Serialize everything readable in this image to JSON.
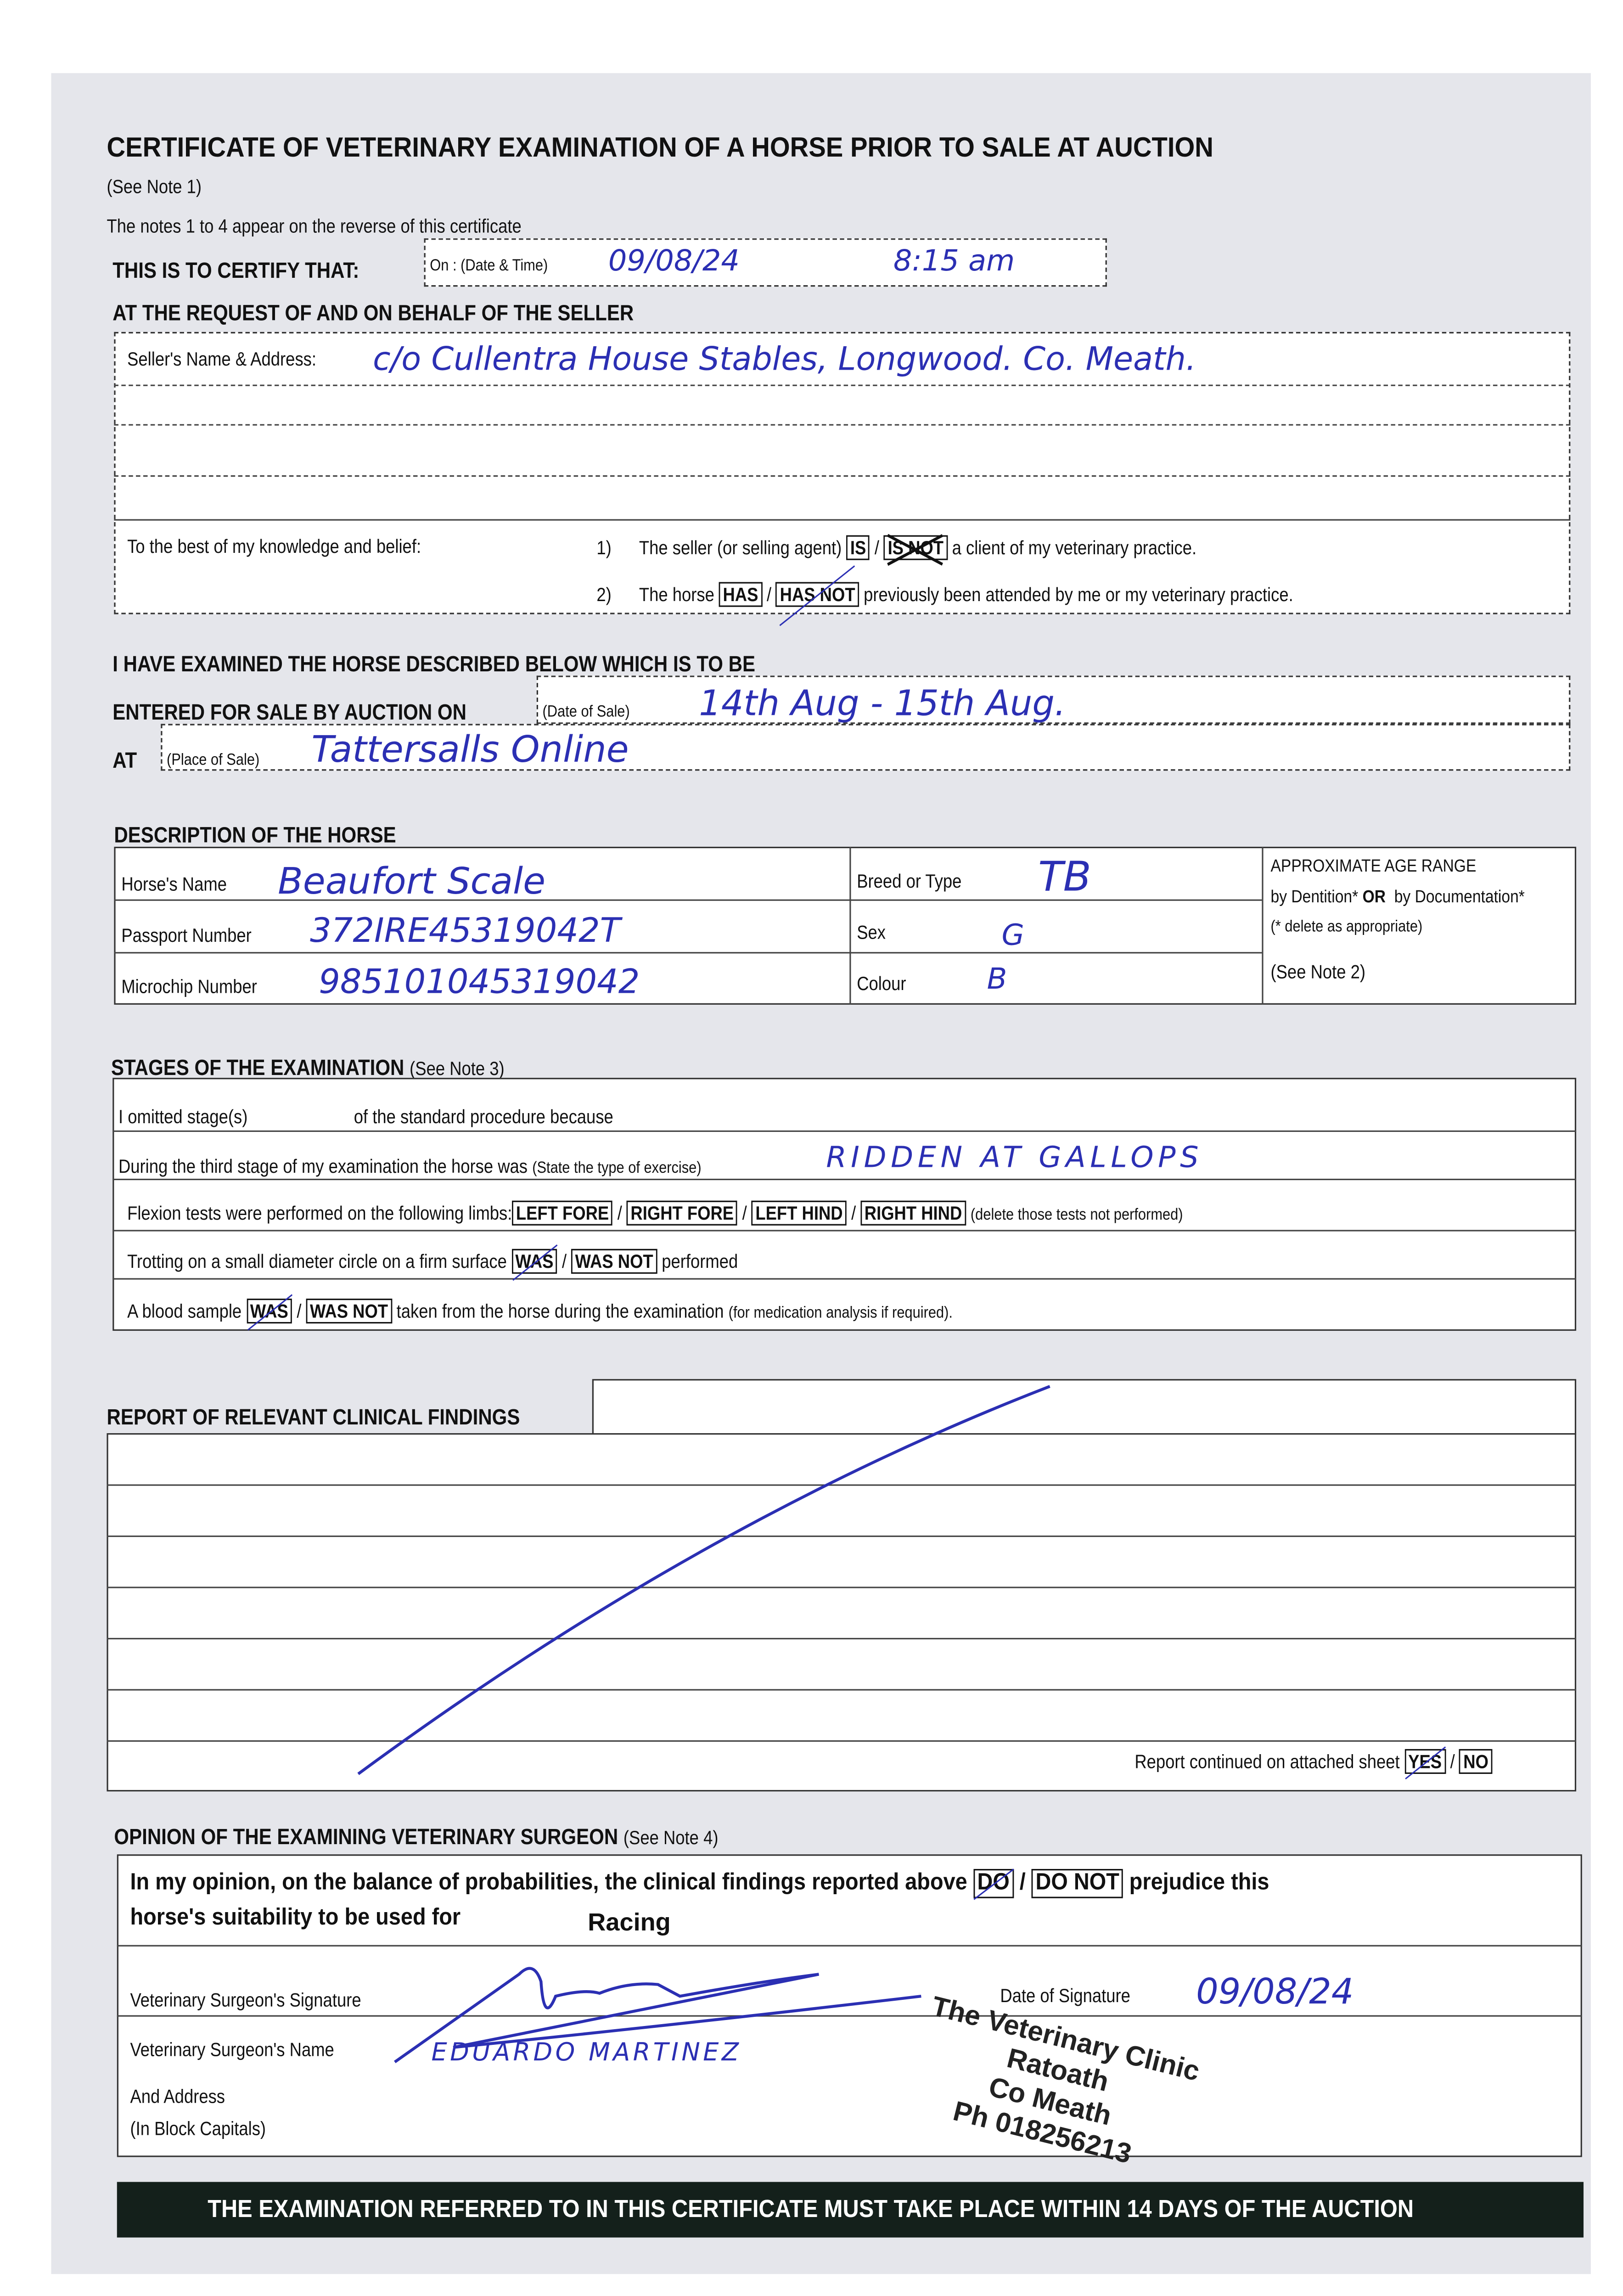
{
  "title": "CERTIFICATE OF VETERINARY EXAMINATION OF A HORSE PRIOR TO SALE AT AUCTION",
  "see_note_1": "(See Note 1)",
  "notes_line": "The notes 1 to 4 appear on the reverse of this certificate",
  "certify": {
    "label": "THIS IS TO CERTIFY THAT:",
    "date_label": "On : (Date & Time)",
    "date_value": "09/08/24",
    "time_value": "8:15 am"
  },
  "seller": {
    "heading": "AT THE REQUEST OF AND ON BEHALF OF THE SELLER",
    "name_label": "Seller's Name & Address:",
    "name_value": "c/o Cullentra House Stables, Longwood. Co. Meath.",
    "knowledge_label": "To the best of my knowledge and belief:",
    "s1_num": "1)",
    "s1_pre": "The seller (or selling agent)",
    "s1_opt1": "IS",
    "s1_opt2": "IS NOT",
    "s1_post": "a client of my veterinary practice.",
    "s2_num": "2)",
    "s2_pre": "The horse",
    "s2_opt1": "HAS",
    "s2_opt2": "HAS NOT",
    "s2_post": "previously been attended by me or my veterinary practice."
  },
  "sale": {
    "heading": "I HAVE EXAMINED THE HORSE DESCRIBED BELOW WHICH IS TO BE",
    "entered_label": "ENTERED FOR SALE BY AUCTION ON",
    "date_label": "(Date of Sale)",
    "date_value": "14th Aug - 15th Aug.",
    "at_label": "AT",
    "place_label": "(Place of Sale)",
    "place_value": "Tattersalls Online"
  },
  "description": {
    "heading": "DESCRIPTION OF THE HORSE",
    "name_label": "Horse's Name",
    "name_value": "Beaufort Scale",
    "passport_label": "Passport Number",
    "passport_value": "372IRE45319042T",
    "microchip_label": "Microchip Number",
    "microchip_value": "985101045319042",
    "breed_label": "Breed or Type",
    "breed_value": "TB",
    "sex_label": "Sex",
    "sex_value": "G",
    "colour_label": "Colour",
    "colour_value": "B",
    "age_title": "APPROXIMATE AGE RANGE",
    "age_by1": "by Dentition*",
    "age_or": "OR",
    "age_by2": "by Documentation*",
    "age_delete": "(* delete as appropriate)",
    "age_note": "(See Note 2)"
  },
  "stages": {
    "heading": "STAGES OF THE EXAMINATION",
    "heading_note": "(See Note 3)",
    "omitted_a": "I omitted stage(s)",
    "omitted_b": "of the standard procedure because",
    "third_label": "During the third stage of my examination the horse was",
    "third_note": "(State the type of exercise)",
    "third_value": "RIDDEN AT GALLOPS",
    "flexion_label": "Flexion tests were performed on the following limbs:",
    "limbs": [
      "LEFT FORE",
      "RIGHT FORE",
      "LEFT HIND",
      "RIGHT HIND"
    ],
    "flexion_note": "(delete those tests not performed)",
    "trot_label": "Trotting on a small diameter circle on a firm surface",
    "trot_opt1": "WAS",
    "trot_opt2": "WAS NOT",
    "trot_post": "performed",
    "blood_label": "A blood sample",
    "blood_opt1": "WAS",
    "blood_opt2": "WAS NOT",
    "blood_post": "taken from the horse during the examination",
    "blood_note": "(for medication analysis if required)."
  },
  "report": {
    "heading": "REPORT OF RELEVANT CLINICAL FINDINGS",
    "continued_label": "Report continued on attached sheet",
    "yes": "YES",
    "no": "NO"
  },
  "opinion": {
    "heading": "OPINION OF THE EXAMINING VETERINARY SURGEON",
    "heading_note": "(See Note 4)",
    "text_a": "In my opinion, on the balance of probabilities, the clinical findings reported above",
    "opt1": "DO",
    "opt2": "DO NOT",
    "text_b": "prejudice this",
    "text_c": "horse's suitability to be used for",
    "use_value": "Racing",
    "sig_label": "Veterinary Surgeon's Signature",
    "date_label": "Date of Signature",
    "date_value": "09/08/24",
    "name_label": "Veterinary Surgeon's Name",
    "name_value": "EDUARDO MARTINEZ",
    "addr_label": "And Address",
    "addr_note": "(In Block Capitals)",
    "stamp": [
      "The Veterinary Clinic",
      "Ratoath",
      "Co Meath",
      "Ph 018256213"
    ]
  },
  "footer": "THE EXAMINATION REFERRED TO IN THIS CERTIFICATE MUST TAKE PLACE WITHIN 14 DAYS OF THE AUCTION",
  "colors": {
    "ink": "#2b2fb3",
    "paper": "#e5e6eb",
    "banner": "#14201b"
  }
}
